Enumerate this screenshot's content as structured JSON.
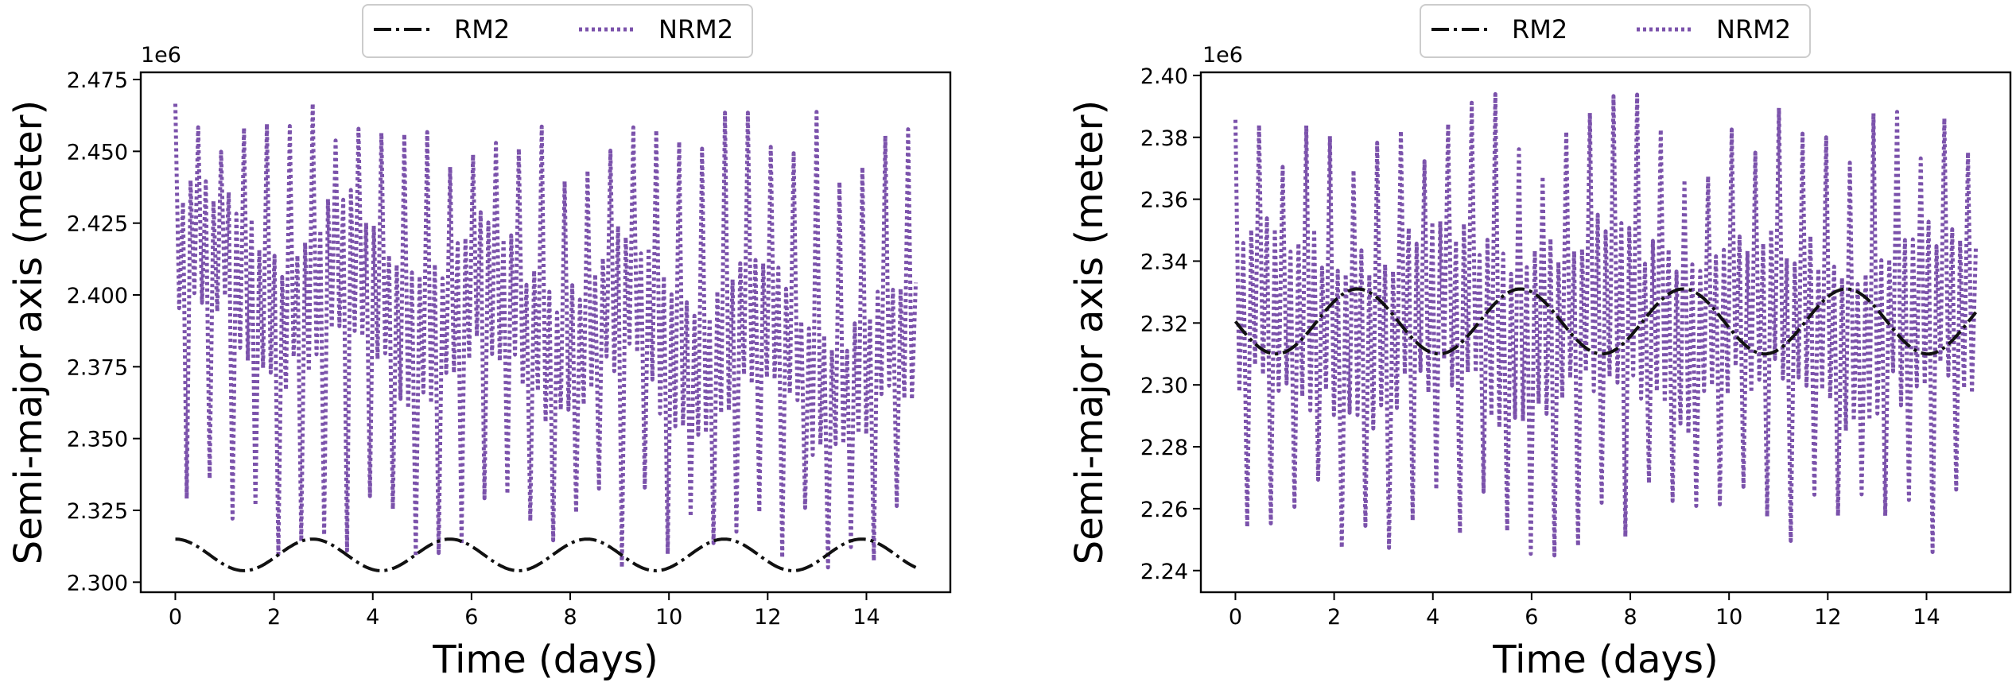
{
  "colors": {
    "rm2": "#111111",
    "nrm2": "#7b52ab",
    "axis": "#000000",
    "legend_border": "#cccccc"
  },
  "chart_data": [
    {
      "type": "line",
      "xlabel": "Time (days)",
      "ylabel": "Semi-major axis (meter)",
      "offset_text": "1e6",
      "xlim": [
        -0.7,
        15.7
      ],
      "ylim": [
        2.2965,
        2.4775
      ],
      "xticks": [
        0,
        2,
        4,
        6,
        8,
        10,
        12,
        14
      ],
      "xtick_labels": [
        "0",
        "2",
        "4",
        "6",
        "8",
        "10",
        "12",
        "14"
      ],
      "yticks": [
        2.3,
        2.325,
        2.35,
        2.375,
        2.4,
        2.425,
        2.45,
        2.475
      ],
      "ytick_labels": [
        "2.300",
        "2.325",
        "2.350",
        "2.375",
        "2.400",
        "2.425",
        "2.450",
        "2.475"
      ],
      "legend": {
        "position": "top-center-outside",
        "entries": [
          "RM2",
          "NRM2"
        ]
      },
      "series": [
        {
          "name": "RM2",
          "style": "dashdot",
          "model": {
            "kind": "sine",
            "x_start": 0,
            "x_end": 15,
            "mean": 2.3095,
            "amplitude": 0.0055,
            "period_days": 2.78,
            "phase_deg": 90
          }
        },
        {
          "name": "NRM2",
          "style": "dotted",
          "model": {
            "kind": "oscillation",
            "x_start": 0,
            "x_end": 15,
            "mean_start": 2.408,
            "mean_end": 2.372,
            "wave_amplitude": 0.012,
            "wave_period_days": 2.8,
            "fast_period_days": 0.155,
            "spike_every": 3,
            "spike_max": 2.467,
            "dip_min": 2.305,
            "core_halfwidth": 0.026
          }
        }
      ]
    },
    {
      "type": "line",
      "xlabel": "Time (days)",
      "ylabel": "Semi-major axis (meter)",
      "offset_text": "1e6",
      "xlim": [
        -0.7,
        15.7
      ],
      "ylim": [
        2.233,
        2.401
      ],
      "xticks": [
        0,
        2,
        4,
        6,
        8,
        10,
        12,
        14
      ],
      "xtick_labels": [
        "0",
        "2",
        "4",
        "6",
        "8",
        "10",
        "12",
        "14"
      ],
      "yticks": [
        2.24,
        2.26,
        2.28,
        2.3,
        2.32,
        2.34,
        2.36,
        2.38,
        2.4
      ],
      "ytick_labels": [
        "2.24",
        "2.26",
        "2.28",
        "2.30",
        "2.32",
        "2.34",
        "2.36",
        "2.38",
        "2.40"
      ],
      "legend": {
        "position": "top-center-outside",
        "entries": [
          "RM2",
          "NRM2"
        ]
      },
      "series": [
        {
          "name": "RM2",
          "style": "dashdot",
          "model": {
            "kind": "sine",
            "x_start": 0,
            "x_end": 15,
            "mean": 2.3205,
            "amplitude": 0.0105,
            "period_days": 3.3,
            "phase_deg": 180
          }
        },
        {
          "name": "NRM2",
          "style": "dotted",
          "model": {
            "kind": "oscillation",
            "x_start": 0,
            "x_end": 15,
            "mean_start": 2.32,
            "mean_end": 2.32,
            "wave_amplitude": 0.006,
            "wave_period_days": 3.3,
            "fast_period_days": 0.16,
            "spike_every": 3,
            "spike_max": 2.394,
            "dip_min": 2.243,
            "core_halfwidth": 0.03
          }
        }
      ]
    }
  ]
}
